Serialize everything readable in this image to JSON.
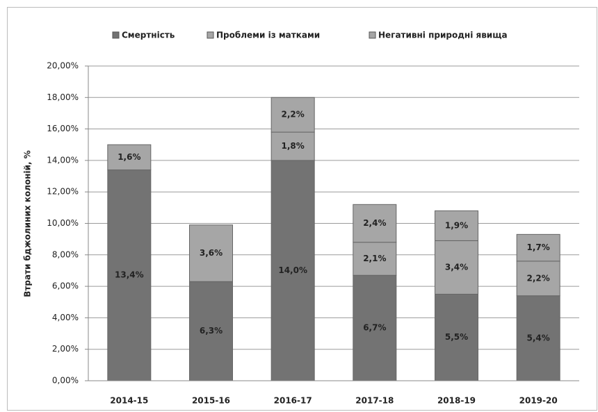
{
  "chart_data": {
    "type": "stacked_bar",
    "y_axis_label": "Втрати бджолиних колоній, %",
    "categories": [
      "2014-15",
      "2015-16",
      "2016-17",
      "2017-18",
      "2018-19",
      "2019-20"
    ],
    "series": [
      {
        "name": "Смертність",
        "color": "#737373",
        "values": [
          13.4,
          6.3,
          14.0,
          6.7,
          5.5,
          5.4
        ],
        "value_labels": [
          "13,4%",
          "6,3%",
          "14,0%",
          "6,7%",
          "5,5%",
          "5,4%"
        ]
      },
      {
        "name": "Проблеми із матками",
        "color": "#a6a6a6",
        "values": [
          1.6,
          3.6,
          1.8,
          2.1,
          3.4,
          2.2
        ],
        "value_labels": [
          "1,6%",
          "3,6%",
          "1,8%",
          "2,1%",
          "3,4%",
          "2,2%"
        ]
      },
      {
        "name": "Негативні природні явища",
        "color": "#a6a6a6",
        "values": [
          null,
          null,
          2.2,
          2.4,
          1.9,
          1.7
        ],
        "value_labels": [
          null,
          null,
          "2,2%",
          "2,4%",
          "1,9%",
          "1,7%"
        ]
      }
    ],
    "ylim": [
      0,
      20
    ],
    "yticks": [
      {
        "value": 0,
        "label": "0,00%"
      },
      {
        "value": 2,
        "label": "2,00%"
      },
      {
        "value": 4,
        "label": "4,00%"
      },
      {
        "value": 6,
        "label": "6,00%"
      },
      {
        "value": 8,
        "label": "8,00%"
      },
      {
        "value": 10,
        "label": "10,00%"
      },
      {
        "value": 12,
        "label": "12,00%"
      },
      {
        "value": 14,
        "label": "14,00%"
      },
      {
        "value": 16,
        "label": "16,00%"
      },
      {
        "value": 18,
        "label": "18,00%"
      },
      {
        "value": 20,
        "label": "20,00%"
      }
    ],
    "grid": true,
    "legend": "top"
  }
}
